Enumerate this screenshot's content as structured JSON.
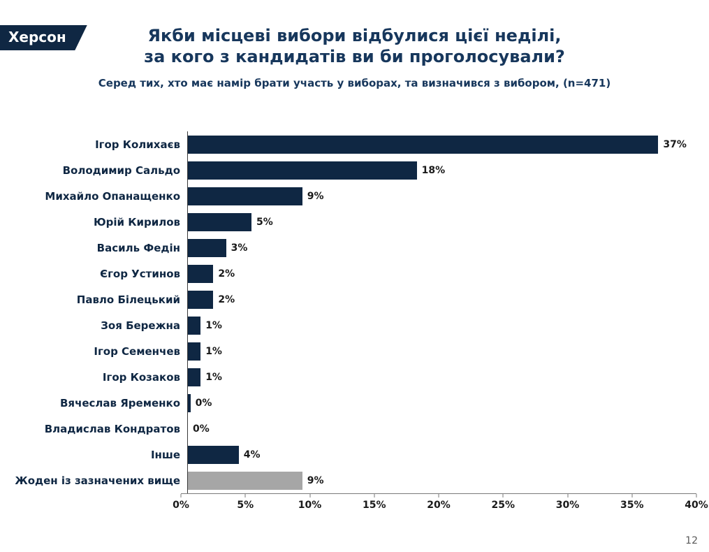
{
  "badge": {
    "label": "Херсон"
  },
  "title": {
    "line1": "Якби місцеві вибори відбулися цієї неділі,",
    "line2": "за кого з кандидатів ви би проголосували?"
  },
  "subtitle": "Серед тих, хто має намір брати участь у виборах, та визначився з вибором, (n=471)",
  "page_number": "12",
  "colors": {
    "navy": "#0f2743",
    "gray": "#a6a6a6",
    "title": "#17375c"
  },
  "chart_data": {
    "type": "bar",
    "orientation": "horizontal",
    "title": "Якби місцеві вибори відбулися цієї неділі, за кого з кандидатів ви би проголосували?",
    "subtitle": "Серед тих, хто має намір брати участь у виборах, та визначився з вибором, (n=471)",
    "categories": [
      "Ігор Колихаєв",
      "Володимир Сальдо",
      "Михайло Опанащенко",
      "Юрій Кирилов",
      "Василь Федін",
      "Єгор Устинов",
      "Павло Білецький",
      "Зоя Бережна",
      "Ігор Семенчев",
      "Ігор Козаков",
      "Вячеслав Яременко",
      "Владислав Кондратов",
      "Інше",
      "Жоден із зазначених вище"
    ],
    "values": [
      37,
      18,
      9,
      5,
      3,
      2,
      2,
      1,
      1,
      1,
      0.2,
      0,
      4,
      9
    ],
    "value_labels": [
      "37%",
      "18%",
      "9%",
      "5%",
      "3%",
      "2%",
      "2%",
      "1%",
      "1%",
      "1%",
      "0%",
      "0%",
      "4%",
      "9%"
    ],
    "bar_colors": [
      "#0f2743",
      "#0f2743",
      "#0f2743",
      "#0f2743",
      "#0f2743",
      "#0f2743",
      "#0f2743",
      "#0f2743",
      "#0f2743",
      "#0f2743",
      "#0f2743",
      "#0f2743",
      "#0f2743",
      "#a6a6a6"
    ],
    "xlim": [
      0,
      40
    ],
    "x_ticks": [
      "0%",
      "5%",
      "10%",
      "15%",
      "20%",
      "25%",
      "30%",
      "35%",
      "40%"
    ],
    "grid": false,
    "legend": "none"
  }
}
